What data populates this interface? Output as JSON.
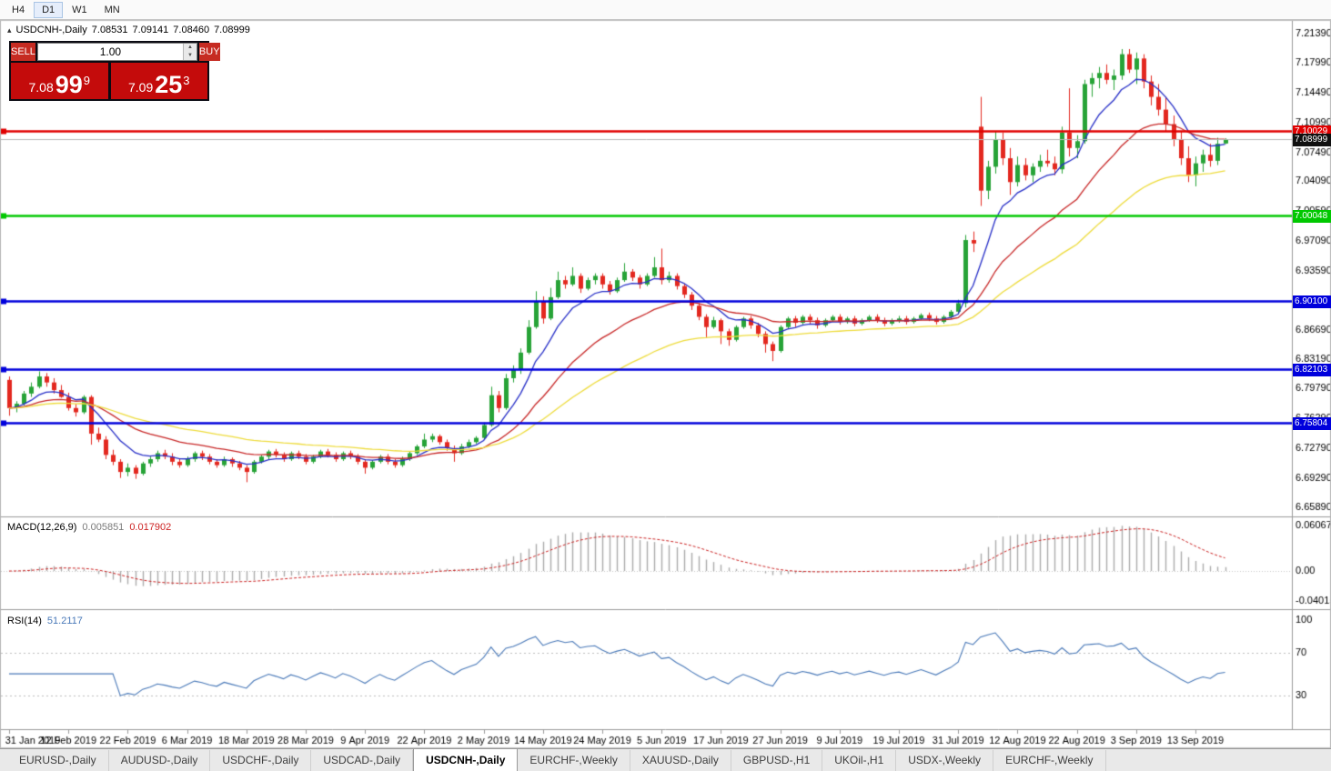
{
  "toolbar": {
    "timeframes": [
      "H4",
      "D1",
      "W1",
      "MN"
    ],
    "active": "D1"
  },
  "chart": {
    "symbol_line": {
      "symbol": "USDCNH-,Daily",
      "open": "7.08531",
      "high": "7.09141",
      "low": "7.08460",
      "close": "7.08999"
    },
    "trade_panel": {
      "sell_label": "SELL",
      "buy_label": "BUY",
      "volume": "1.00",
      "sell_price": {
        "big": "7.08",
        "pips": "99",
        "pip": "9"
      },
      "buy_price": {
        "big": "7.09",
        "pips": "25",
        "pip": "3"
      }
    },
    "levels": [
      {
        "label": "7.10029",
        "price": 7.10029,
        "color": "#E00000",
        "width": 2.5
      },
      {
        "label": "7.08999",
        "price": 7.08999,
        "color": "#B8B8B8",
        "width": 1,
        "badge": "#101010"
      },
      {
        "label": "7.00048",
        "price": 7.00048,
        "color": "#00C800",
        "width": 2.5
      },
      {
        "label": "6.90100",
        "price": 6.901,
        "color": "#0000DC",
        "width": 2.5
      },
      {
        "label": "6.82103",
        "price": 6.82103,
        "color": "#0000DC",
        "width": 2.5
      },
      {
        "label": "6.75804",
        "price": 6.75804,
        "color": "#0000DC",
        "width": 2.5
      }
    ]
  },
  "chart_data": {
    "type": "candlestick",
    "symbol": "USDCNH-,Daily",
    "ylim": [
      6.65,
      7.228
    ],
    "y_ticks": [
      "7.21390",
      "7.17990",
      "7.14490",
      "7.10990",
      "7.07490",
      "7.04090",
      "7.00590",
      "6.97090",
      "6.93590",
      "6.90090",
      "6.86690",
      "6.83190",
      "6.79790",
      "6.76290",
      "6.72790",
      "6.69290",
      "6.65890"
    ],
    "x_labels": [
      "31 Jan 2019",
      "12 Feb 2019",
      "22 Feb 2019",
      "6 Mar 2019",
      "18 Mar 2019",
      "28 Mar 2019",
      "9 Apr 2019",
      "22 Apr 2019",
      "2 May 2019",
      "14 May 2019",
      "24 May 2019",
      "5 Jun 2019",
      "17 Jun 2019",
      "27 Jun 2019",
      "9 Jul 2019",
      "19 Jul 2019",
      "31 Jul 2019",
      "12 Aug 2019",
      "22 Aug 2019",
      "3 Sep 2019",
      "13 Sep 2019"
    ],
    "x_label_step": 8,
    "colors": {
      "bull": "#27A337",
      "bear": "#E3281F"
    },
    "moving_averages": [
      {
        "period": 8,
        "color": "#2830C8"
      },
      {
        "period": 22,
        "color": "#C82828"
      },
      {
        "period": 45,
        "color": "#EEDC3C"
      }
    ],
    "macd": {
      "label": "MACD(12,26,9)",
      "value_main": "0.005851",
      "value_signal": "0.017902",
      "fast": 12,
      "slow": 26,
      "signal": 9,
      "scale": [
        "0.060674",
        "0.00",
        "-0.040152"
      ],
      "ylim": [
        -0.046,
        0.068
      ],
      "hist_color": "#ABABAB",
      "signal_color": "#CC2222"
    },
    "rsi": {
      "label": "RSI(14)",
      "value": "51.2117",
      "period": 14,
      "scale": [
        "100",
        "70",
        "30"
      ],
      "levels": [
        70,
        30
      ],
      "ylim": [
        0,
        107
      ],
      "color": "#4878B8"
    },
    "candles": [
      [
        6.808,
        6.812,
        6.766,
        6.775
      ],
      [
        6.775,
        6.783,
        6.77,
        6.78
      ],
      [
        6.78,
        6.795,
        6.778,
        6.792
      ],
      [
        6.792,
        6.805,
        6.788,
        6.8
      ],
      [
        6.8,
        6.818,
        6.798,
        6.812
      ],
      [
        6.812,
        6.816,
        6.8,
        6.805
      ],
      [
        6.805,
        6.81,
        6.792,
        6.796
      ],
      [
        6.796,
        6.802,
        6.787,
        6.788
      ],
      [
        6.788,
        6.793,
        6.772,
        6.775
      ],
      [
        6.775,
        6.78,
        6.765,
        6.77
      ],
      [
        6.77,
        6.79,
        6.768,
        6.788
      ],
      [
        6.788,
        6.79,
        6.732,
        6.745
      ],
      [
        6.745,
        6.752,
        6.735,
        6.738
      ],
      [
        6.738,
        6.742,
        6.715,
        6.72
      ],
      [
        6.72,
        6.726,
        6.708,
        6.712
      ],
      [
        6.712,
        6.715,
        6.693,
        6.7
      ],
      [
        6.7,
        6.71,
        6.695,
        6.705
      ],
      [
        6.705,
        6.708,
        6.692,
        6.698
      ],
      [
        6.698,
        6.712,
        6.696,
        6.71
      ],
      [
        6.71,
        6.718,
        6.706,
        6.715
      ],
      [
        6.715,
        6.725,
        6.712,
        6.722
      ],
      [
        6.722,
        6.726,
        6.715,
        6.718
      ],
      [
        6.718,
        6.722,
        6.708,
        6.712
      ],
      [
        6.712,
        6.716,
        6.705,
        6.708
      ],
      [
        6.708,
        6.718,
        6.706,
        6.715
      ],
      [
        6.715,
        6.724,
        6.712,
        6.722
      ],
      [
        6.722,
        6.725,
        6.714,
        6.718
      ],
      [
        6.718,
        6.721,
        6.709,
        6.712
      ],
      [
        6.712,
        6.715,
        6.705,
        6.708
      ],
      [
        6.708,
        6.718,
        6.706,
        6.715
      ],
      [
        6.715,
        6.717,
        6.706,
        6.71
      ],
      [
        6.71,
        6.713,
        6.702,
        6.705
      ],
      [
        6.705,
        6.708,
        6.688,
        6.7
      ],
      [
        6.7,
        6.714,
        6.698,
        6.712
      ],
      [
        6.712,
        6.72,
        6.71,
        6.718
      ],
      [
        6.718,
        6.726,
        6.715,
        6.724
      ],
      [
        6.724,
        6.727,
        6.717,
        6.72
      ],
      [
        6.72,
        6.723,
        6.712,
        6.715
      ],
      [
        6.715,
        6.724,
        6.713,
        6.722
      ],
      [
        6.722,
        6.725,
        6.715,
        6.718
      ],
      [
        6.718,
        6.721,
        6.709,
        6.712
      ],
      [
        6.712,
        6.72,
        6.71,
        6.718
      ],
      [
        6.718,
        6.726,
        6.716,
        6.724
      ],
      [
        6.724,
        6.727,
        6.717,
        6.72
      ],
      [
        6.72,
        6.723,
        6.712,
        6.715
      ],
      [
        6.715,
        6.724,
        6.713,
        6.722
      ],
      [
        6.722,
        6.725,
        6.715,
        6.718
      ],
      [
        6.718,
        6.721,
        6.709,
        6.712
      ],
      [
        6.712,
        6.715,
        6.698,
        6.705
      ],
      [
        6.705,
        6.714,
        6.703,
        6.712
      ],
      [
        6.712,
        6.72,
        6.71,
        6.718
      ],
      [
        6.718,
        6.721,
        6.709,
        6.712
      ],
      [
        6.712,
        6.715,
        6.705,
        6.708
      ],
      [
        6.708,
        6.718,
        6.706,
        6.715
      ],
      [
        6.715,
        6.724,
        6.713,
        6.722
      ],
      [
        6.722,
        6.732,
        6.72,
        6.73
      ],
      [
        6.73,
        6.745,
        6.728,
        6.738
      ],
      [
        6.738,
        6.745,
        6.735,
        6.742
      ],
      [
        6.742,
        6.744,
        6.732,
        6.735
      ],
      [
        6.735,
        6.738,
        6.725,
        6.728
      ],
      [
        6.728,
        6.731,
        6.712,
        6.722
      ],
      [
        6.722,
        6.733,
        6.72,
        6.73
      ],
      [
        6.73,
        6.738,
        6.728,
        6.735
      ],
      [
        6.735,
        6.742,
        6.733,
        6.74
      ],
      [
        6.74,
        6.758,
        6.738,
        6.755
      ],
      [
        6.755,
        6.8,
        6.753,
        6.79
      ],
      [
        6.79,
        6.795,
        6.77,
        6.775
      ],
      [
        6.775,
        6.815,
        6.773,
        6.81
      ],
      [
        6.81,
        6.825,
        6.805,
        6.82
      ],
      [
        6.82,
        6.845,
        6.815,
        6.84
      ],
      [
        6.84,
        6.878,
        6.838,
        6.87
      ],
      [
        6.87,
        6.912,
        6.868,
        6.9
      ],
      [
        6.9,
        6.906,
        6.874,
        6.88
      ],
      [
        6.88,
        6.916,
        6.878,
        6.905
      ],
      [
        6.905,
        6.935,
        6.903,
        6.925
      ],
      [
        6.925,
        6.93,
        6.915,
        6.92
      ],
      [
        6.92,
        6.94,
        6.918,
        6.93
      ],
      [
        6.93,
        6.933,
        6.91,
        6.915
      ],
      [
        6.915,
        6.928,
        6.913,
        6.925
      ],
      [
        6.925,
        6.933,
        6.92,
        6.93
      ],
      [
        6.93,
        6.933,
        6.915,
        6.92
      ],
      [
        6.92,
        6.924,
        6.908,
        6.912
      ],
      [
        6.912,
        6.928,
        6.91,
        6.925
      ],
      [
        6.925,
        6.945,
        6.923,
        6.935
      ],
      [
        6.935,
        6.938,
        6.924,
        6.928
      ],
      [
        6.928,
        6.931,
        6.915,
        6.92
      ],
      [
        6.92,
        6.933,
        6.918,
        6.93
      ],
      [
        6.93,
        6.952,
        6.928,
        6.94
      ],
      [
        6.94,
        6.962,
        6.92,
        6.925
      ],
      [
        6.925,
        6.935,
        6.922,
        6.93
      ],
      [
        6.93,
        6.933,
        6.914,
        6.918
      ],
      [
        6.918,
        6.921,
        6.904,
        6.908
      ],
      [
        6.908,
        6.911,
        6.89,
        6.895
      ],
      [
        6.895,
        6.898,
        6.878,
        6.882
      ],
      [
        6.882,
        6.885,
        6.858,
        6.87
      ],
      [
        6.87,
        6.882,
        6.868,
        6.878
      ],
      [
        6.878,
        6.88,
        6.85,
        6.865
      ],
      [
        6.865,
        6.868,
        6.848,
        6.855
      ],
      [
        6.855,
        6.872,
        6.853,
        6.87
      ],
      [
        6.87,
        6.882,
        6.868,
        6.88
      ],
      [
        6.88,
        6.883,
        6.868,
        6.872
      ],
      [
        6.872,
        6.875,
        6.858,
        6.862
      ],
      [
        6.862,
        6.865,
        6.84,
        6.85
      ],
      [
        6.85,
        6.853,
        6.83,
        6.842
      ],
      [
        6.842,
        6.872,
        6.84,
        6.87
      ],
      [
        6.87,
        6.882,
        6.868,
        6.88
      ],
      [
        6.88,
        6.883,
        6.87,
        6.875
      ],
      [
        6.875,
        6.884,
        6.873,
        6.882
      ],
      [
        6.882,
        6.885,
        6.874,
        6.878
      ],
      [
        6.878,
        6.881,
        6.868,
        6.872
      ],
      [
        6.872,
        6.88,
        6.87,
        6.878
      ],
      [
        6.878,
        6.884,
        6.876,
        6.882
      ],
      [
        6.882,
        6.885,
        6.873,
        6.876
      ],
      [
        6.876,
        6.882,
        6.874,
        6.88
      ],
      [
        6.88,
        6.883,
        6.871,
        6.874
      ],
      [
        6.874,
        6.88,
        6.872,
        6.878
      ],
      [
        6.878,
        6.884,
        6.876,
        6.882
      ],
      [
        6.882,
        6.885,
        6.875,
        6.878
      ],
      [
        6.878,
        6.881,
        6.871,
        6.874
      ],
      [
        6.874,
        6.88,
        6.872,
        6.878
      ],
      [
        6.878,
        6.883,
        6.875,
        6.88
      ],
      [
        6.88,
        6.883,
        6.873,
        6.876
      ],
      [
        6.876,
        6.882,
        6.874,
        6.88
      ],
      [
        6.88,
        6.886,
        6.878,
        6.884
      ],
      [
        6.884,
        6.887,
        6.877,
        6.88
      ],
      [
        6.88,
        6.883,
        6.873,
        6.876
      ],
      [
        6.876,
        6.884,
        6.874,
        6.882
      ],
      [
        6.882,
        6.89,
        6.88,
        6.888
      ],
      [
        6.888,
        6.902,
        6.886,
        6.898
      ],
      [
        6.898,
        6.978,
        6.893,
        6.972
      ],
      [
        6.972,
        6.982,
        6.958,
        6.968
      ],
      [
        7.105,
        7.14,
        7.012,
        7.03
      ],
      [
        7.03,
        7.065,
        7.02,
        7.058
      ],
      [
        7.058,
        7.1,
        7.05,
        7.09
      ],
      [
        7.09,
        7.098,
        7.06,
        7.068
      ],
      [
        7.068,
        7.08,
        7.025,
        7.04
      ],
      [
        7.04,
        7.07,
        7.035,
        7.06
      ],
      [
        7.06,
        7.068,
        7.042,
        7.048
      ],
      [
        7.048,
        7.062,
        7.04,
        7.058
      ],
      [
        7.058,
        7.072,
        7.052,
        7.065
      ],
      [
        7.065,
        7.078,
        7.058,
        7.062
      ],
      [
        7.062,
        7.07,
        7.048,
        7.055
      ],
      [
        7.055,
        7.105,
        7.05,
        7.098
      ],
      [
        7.098,
        7.15,
        7.07,
        7.08
      ],
      [
        7.08,
        7.095,
        7.068,
        7.088
      ],
      [
        7.088,
        7.16,
        7.085,
        7.155
      ],
      [
        7.155,
        7.168,
        7.14,
        7.162
      ],
      [
        7.162,
        7.175,
        7.15,
        7.168
      ],
      [
        7.168,
        7.178,
        7.155,
        7.16
      ],
      [
        7.16,
        7.172,
        7.148,
        7.165
      ],
      [
        7.165,
        7.196,
        7.16,
        7.19
      ],
      [
        7.19,
        7.196,
        7.168,
        7.172
      ],
      [
        7.172,
        7.192,
        7.155,
        7.185
      ],
      [
        7.185,
        7.19,
        7.15,
        7.158
      ],
      [
        7.158,
        7.165,
        7.13,
        7.14
      ],
      [
        7.14,
        7.155,
        7.118,
        7.125
      ],
      [
        7.125,
        7.14,
        7.1,
        7.108
      ],
      [
        7.108,
        7.118,
        7.082,
        7.09
      ],
      [
        7.09,
        7.1,
        7.06,
        7.068
      ],
      [
        7.068,
        7.082,
        7.04,
        7.048
      ],
      [
        7.048,
        7.07,
        7.035,
        7.062
      ],
      [
        7.062,
        7.078,
        7.052,
        7.072
      ],
      [
        7.072,
        7.085,
        7.058,
        7.065
      ],
      [
        7.065,
        7.092,
        7.06,
        7.085
      ],
      [
        7.08531,
        7.09141,
        7.0846,
        7.08999
      ]
    ]
  },
  "tabs": {
    "active_index": 4,
    "items": [
      "EURUSD-,Daily",
      "AUDUSD-,Daily",
      "USDCHF-,Daily",
      "USDCAD-,Daily",
      "USDCNH-,Daily",
      "EURCHF-,Weekly",
      "XAUUSD-,Daily",
      "GBPUSD-,H1",
      "UKOil-,H1",
      "USDX-,Weekly",
      "EURCHF-,Weekly"
    ]
  }
}
